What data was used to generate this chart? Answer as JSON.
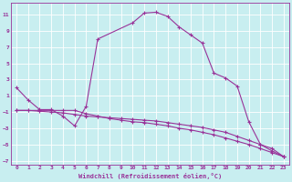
{
  "xlabel": "Windchill (Refroidissement éolien,°C)",
  "bg_color": "#c8eef0",
  "line_color": "#993399",
  "grid_color": "#ffffff",
  "xlim": [
    -0.5,
    23.5
  ],
  "ylim": [
    -7.5,
    12.5
  ],
  "xticks": [
    0,
    1,
    2,
    3,
    4,
    5,
    6,
    7,
    8,
    9,
    10,
    11,
    12,
    13,
    14,
    15,
    16,
    17,
    18,
    19,
    20,
    21,
    22,
    23
  ],
  "yticks": [
    -7,
    -5,
    -3,
    -1,
    1,
    3,
    5,
    7,
    9,
    11
  ],
  "line1_x": [
    0,
    1,
    2,
    3,
    4,
    5,
    6,
    7,
    10,
    11,
    12,
    13,
    14,
    15,
    16,
    17,
    18,
    19,
    20,
    21,
    22,
    23
  ],
  "line1_y": [
    2.0,
    0.5,
    -0.7,
    -0.7,
    -1.5,
    -2.7,
    -0.3,
    8.0,
    10.0,
    11.2,
    11.3,
    10.8,
    9.5,
    8.5,
    7.5,
    3.8,
    3.2,
    2.2,
    -2.2,
    -5.0,
    -5.5,
    -6.5
  ],
  "line2_x": [
    0,
    1,
    2,
    3,
    4,
    5,
    6,
    7,
    8,
    9,
    10,
    11,
    12,
    13,
    14,
    15,
    16,
    17,
    18,
    19,
    20,
    21,
    22,
    23
  ],
  "line2_y": [
    -0.8,
    -0.8,
    -0.8,
    -0.8,
    -0.8,
    -0.8,
    -1.2,
    -1.5,
    -1.8,
    -2.0,
    -2.2,
    -2.3,
    -2.5,
    -2.7,
    -3.0,
    -3.2,
    -3.5,
    -3.8,
    -4.2,
    -4.6,
    -5.0,
    -5.5,
    -6.0,
    -6.5
  ],
  "line3_x": [
    0,
    1,
    2,
    3,
    4,
    5,
    6,
    7,
    8,
    9,
    10,
    11,
    12,
    13,
    14,
    15,
    16,
    17,
    18,
    19,
    20,
    21,
    22,
    23
  ],
  "line3_y": [
    -0.8,
    -0.8,
    -0.9,
    -1.0,
    -1.1,
    -1.3,
    -1.5,
    -1.6,
    -1.7,
    -1.8,
    -1.9,
    -2.0,
    -2.1,
    -2.3,
    -2.5,
    -2.7,
    -2.9,
    -3.2,
    -3.5,
    -4.0,
    -4.5,
    -5.0,
    -5.8,
    -6.5
  ]
}
